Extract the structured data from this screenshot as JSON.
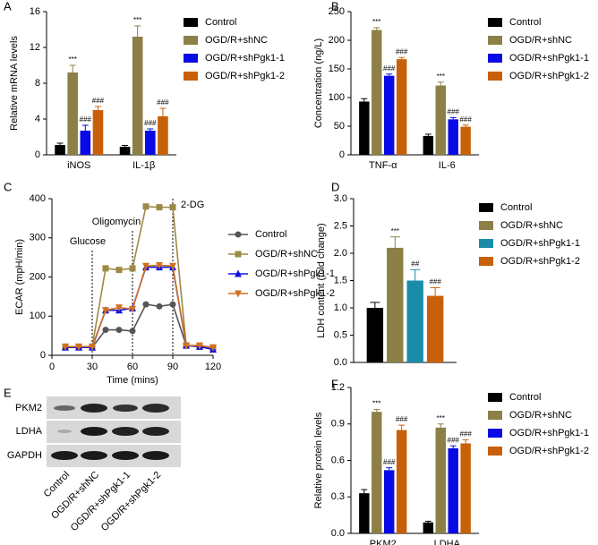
{
  "chart_data": [
    {
      "panel": "A",
      "type": "bar",
      "ylabel": "Relative mRNA levels",
      "categories": [
        "iNOS",
        "IL-1β"
      ],
      "ylim": [
        0,
        16
      ],
      "yticks": [
        0,
        4,
        8,
        12,
        16
      ],
      "series": [
        {
          "name": "Control",
          "color": "#000000",
          "values": [
            1.1,
            0.9
          ],
          "errors": [
            0.2,
            0.15
          ]
        },
        {
          "name": "OGD/R+shNC",
          "color": "#8c8046",
          "values": [
            9.2,
            13.2
          ],
          "errors": [
            0.8,
            1.2
          ],
          "annotations": [
            "***",
            "***"
          ]
        },
        {
          "name": "OGD/R+shPgk1-1",
          "color": "#0a0ae6",
          "values": [
            2.7,
            2.7
          ],
          "errors": [
            0.6,
            0.2
          ],
          "annotations": [
            "###",
            "###"
          ]
        },
        {
          "name": "OGD/R+shPgk1-2",
          "color": "#c8600a",
          "values": [
            5.0,
            4.3
          ],
          "errors": [
            0.4,
            0.9
          ],
          "annotations": [
            "###",
            "###"
          ]
        }
      ]
    },
    {
      "panel": "B",
      "type": "bar",
      "ylabel": "Concentration (ng/L)",
      "categories": [
        "TNF-α",
        "IL-6"
      ],
      "ylim": [
        0,
        250
      ],
      "yticks": [
        0,
        50,
        100,
        150,
        200,
        250
      ],
      "series": [
        {
          "name": "Control",
          "color": "#000000",
          "values": [
            93,
            33
          ],
          "errors": [
            5,
            3
          ]
        },
        {
          "name": "OGD/R+shNC",
          "color": "#8c8046",
          "values": [
            218,
            121
          ],
          "errors": [
            4,
            6
          ],
          "annotations": [
            "***",
            "***"
          ]
        },
        {
          "name": "OGD/R+shPgk1-1",
          "color": "#0a0ae6",
          "values": [
            138,
            62
          ],
          "errors": [
            3,
            3
          ],
          "annotations": [
            "###",
            "###"
          ]
        },
        {
          "name": "OGD/R+shPgk1-2",
          "color": "#c8600a",
          "values": [
            167,
            49
          ],
          "errors": [
            3,
            3
          ],
          "annotations": [
            "###",
            "###"
          ]
        }
      ]
    },
    {
      "panel": "C",
      "type": "line",
      "xlabel": "Time (mins)",
      "ylabel": "ECAR (mpH/min)",
      "x": [
        10,
        20,
        30,
        40,
        50,
        60,
        70,
        80,
        90,
        100,
        110,
        120
      ],
      "xlim": [
        0,
        120
      ],
      "xticks": [
        0,
        30,
        60,
        90,
        120
      ],
      "ylim": [
        0,
        400
      ],
      "yticks": [
        0,
        100,
        200,
        300,
        400
      ],
      "events": [
        {
          "x": 30,
          "label": "Glucose"
        },
        {
          "x": 60,
          "label": "Oligomycin"
        },
        {
          "x": 90,
          "label": "2-DG"
        }
      ],
      "series": [
        {
          "name": "Control",
          "color": "#555555",
          "marker": "circle",
          "values": [
            20,
            20,
            20,
            65,
            65,
            62,
            130,
            125,
            130,
            25,
            22,
            20
          ]
        },
        {
          "name": "OGD/R+shNC",
          "color": "#9c8a44",
          "marker": "square",
          "values": [
            22,
            22,
            22,
            222,
            218,
            222,
            380,
            378,
            378,
            25,
            22,
            18
          ]
        },
        {
          "name": "OGD/R+shPgk1-1",
          "color": "#1010e0",
          "marker": "triangle-up",
          "values": [
            20,
            20,
            20,
            115,
            115,
            120,
            225,
            225,
            225,
            25,
            22,
            15
          ]
        },
        {
          "name": "OGD/R+shPgk1-2",
          "color": "#d07020",
          "marker": "triangle-down",
          "values": [
            22,
            22,
            22,
            115,
            122,
            118,
            228,
            230,
            228,
            25,
            25,
            20
          ]
        }
      ]
    },
    {
      "panel": "D",
      "type": "bar",
      "ylabel": "LDH content (fold change)",
      "categories": [
        null
      ],
      "ylim": [
        0,
        3
      ],
      "yticks": [
        {
          "value": 0,
          "label": "0.0"
        },
        0.5,
        {
          "value": 1,
          "label": "1.0"
        },
        1.5,
        {
          "value": 2,
          "label": "2.0"
        },
        2.5,
        {
          "value": 3,
          "label": "3.0"
        }
      ],
      "series": [
        {
          "name": "Control",
          "color": "#000000",
          "values": [
            1.0
          ],
          "errors": [
            0.1
          ]
        },
        {
          "name": "OGD/R+shNC",
          "color": "#8c8046",
          "values": [
            2.1
          ],
          "errors": [
            0.2
          ],
          "annotations": [
            "***"
          ]
        },
        {
          "name": "OGD/R+shPgk1-1",
          "color": "#1a8ca8",
          "values": [
            1.5
          ],
          "errors": [
            0.2
          ],
          "annotations": [
            "##"
          ]
        },
        {
          "name": "OGD/R+shPgk1-2",
          "color": "#c8600a",
          "values": [
            1.22
          ],
          "errors": [
            0.15
          ],
          "annotations": [
            "###"
          ]
        }
      ]
    },
    {
      "panel": "F",
      "type": "bar",
      "ylabel": "Relative protein levels",
      "categories": [
        "PKM2",
        "LDHA"
      ],
      "ylim": [
        0,
        1.2
      ],
      "yticks": [
        {
          "value": 0,
          "label": "0.0"
        },
        0.3,
        0.6,
        0.9,
        1.2
      ],
      "series": [
        {
          "name": "Control",
          "color": "#000000",
          "values": [
            0.33,
            0.09
          ],
          "errors": [
            0.03,
            0.01
          ]
        },
        {
          "name": "OGD/R+shNC",
          "color": "#8c8046",
          "values": [
            1.0,
            0.87
          ],
          "errors": [
            0.02,
            0.03
          ],
          "annotations": [
            "***",
            "***"
          ]
        },
        {
          "name": "OGD/R+shPgk1-1",
          "color": "#0a0ae6",
          "values": [
            0.52,
            0.7
          ],
          "errors": [
            0.02,
            0.02
          ],
          "annotations": [
            "###",
            "###"
          ]
        },
        {
          "name": "OGD/R+shPgk1-2",
          "color": "#c8600a",
          "values": [
            0.85,
            0.74
          ],
          "errors": [
            0.04,
            0.03
          ],
          "annotations": [
            "###",
            "###"
          ]
        }
      ]
    }
  ],
  "blot": {
    "panel": "E",
    "rows": [
      "PKM2",
      "LDHA",
      "GAPDH"
    ],
    "lanes": [
      "Control",
      "OGD/R+shNC",
      "OGD/R+shPgk1-1",
      "OGD/R+shPgk1-2"
    ]
  }
}
